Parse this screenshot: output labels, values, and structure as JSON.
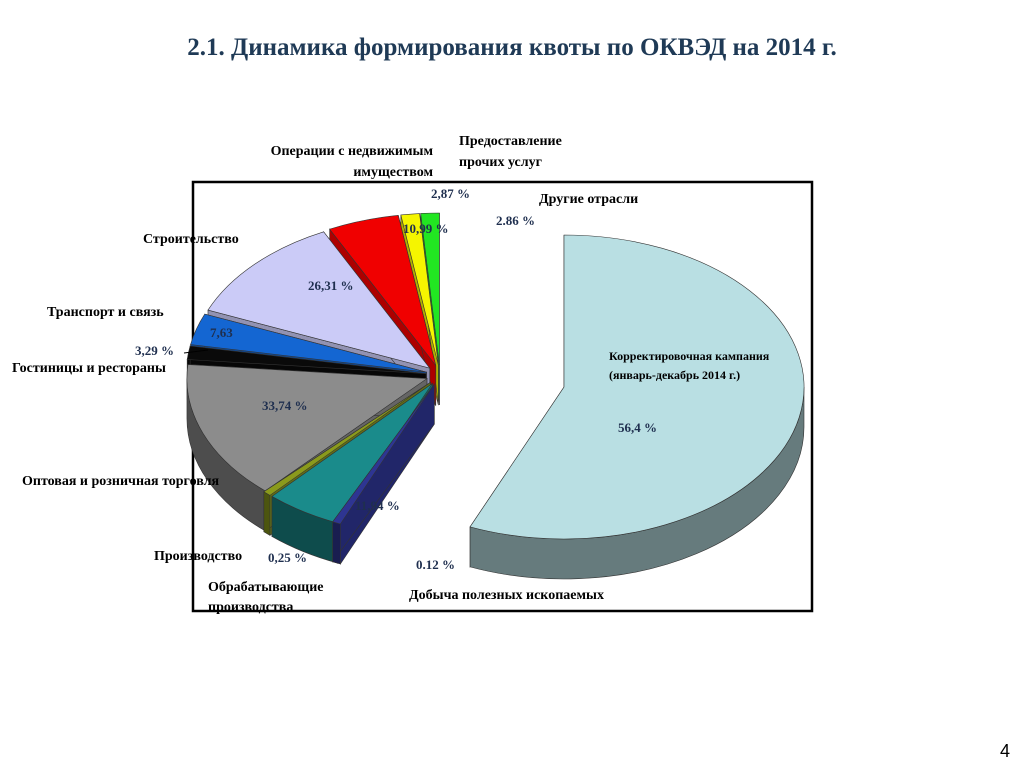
{
  "title": "2.1. Динамика формирования квоты по ОКВЭД на 2014 г.",
  "page_number": "4",
  "chart_data": {
    "type": "pie",
    "title": "2.1. Динамика формирования квоты по ОКВЭД на 2014 г.",
    "main_slice": {
      "label_line1": "Корректировочная кампания",
      "label_line2": "(январь-декабрь 2014 г.)",
      "value": 56.4,
      "value_label": "56,4 %",
      "color": "#b9dfe3"
    },
    "slices": [
      {
        "key": "mining",
        "name": "Добыча полезных ископаемых",
        "value": 0.12,
        "value_label": "0.12 %",
        "color": "#2e3592"
      },
      {
        "key": "processing",
        "name": "Обрабатывающие производства",
        "name_line1": "Обрабатывающие",
        "name_line2": "производства",
        "value": 11.94,
        "value_label": "11,94 %",
        "color": "#1a8b8b"
      },
      {
        "key": "production",
        "name": "Производство",
        "value": 0.25,
        "value_label": "0,25 %",
        "color": "#8a9a1c"
      },
      {
        "key": "trade",
        "name": "Оптовая и розничная торговля",
        "value": 33.74,
        "value_label": "33,74 %",
        "color": "#8c8c8c"
      },
      {
        "key": "hotels",
        "name": "Гостиницы и рестораны",
        "value": 3.29,
        "value_label": "3,29 %",
        "color": "#0a0a0a"
      },
      {
        "key": "transport",
        "name": "Транспорт и связь",
        "value": 7.63,
        "value_label": "7,63",
        "color": "#1466d2"
      },
      {
        "key": "construction",
        "name": "Строительство",
        "value": 26.31,
        "value_label": "26,31 %",
        "color": "#cbcbf7"
      },
      {
        "key": "realestate",
        "name": "Операции с недвижимым имуществом",
        "name_line1": "Операции с недвижимым",
        "name_line2": "имуществом",
        "value": 10.99,
        "value_label": "10,99 %",
        "color": "#f00000"
      },
      {
        "key": "services",
        "name": "Предоставление прочих услуг",
        "name_line1": "Предоставление",
        "name_line2": "прочих услуг",
        "value": 2.87,
        "value_label": "2,87 %",
        "color": "#f5f500"
      },
      {
        "key": "other",
        "name": "Другие отрасли",
        "value": 2.86,
        "value_label": "2.86 %",
        "color": "#22e622"
      }
    ]
  }
}
